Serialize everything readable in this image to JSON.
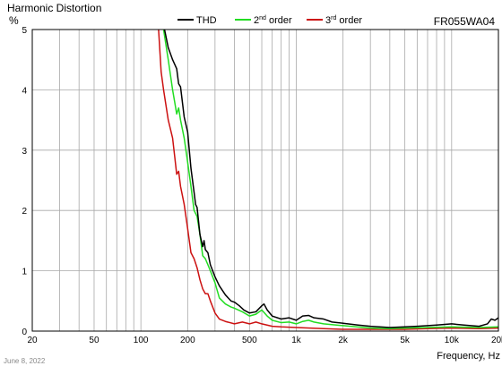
{
  "chart_data": {
    "type": "line",
    "title": "Harmonic Distortion",
    "model": "FR055WA04",
    "ylabel": "%",
    "xlabel": "Frequency, Hz",
    "date": "June 8, 2022",
    "xscale": "log",
    "xlim": [
      20,
      20000
    ],
    "ylim": [
      0,
      5
    ],
    "grid": true,
    "legend_position": "top-center",
    "x_ticks": [
      {
        "value": 20,
        "label": "20"
      },
      {
        "value": 50,
        "label": "50"
      },
      {
        "value": 100,
        "label": "100"
      },
      {
        "value": 200,
        "label": "200"
      },
      {
        "value": 500,
        "label": "500"
      },
      {
        "value": 1000,
        "label": "1k"
      },
      {
        "value": 2000,
        "label": "2k"
      },
      {
        "value": 5000,
        "label": "5k"
      },
      {
        "value": 10000,
        "label": "10k"
      },
      {
        "value": 20000,
        "label": "20k"
      }
    ],
    "y_ticks": [
      {
        "value": 0,
        "label": "0"
      },
      {
        "value": 1,
        "label": "1"
      },
      {
        "value": 2,
        "label": "2"
      },
      {
        "value": 3,
        "label": "3"
      },
      {
        "value": 4,
        "label": "4"
      },
      {
        "value": 5,
        "label": "5"
      }
    ],
    "series": [
      {
        "name": "THD",
        "color": "#000000",
        "points": [
          [
            142,
            5
          ],
          [
            150,
            4.7
          ],
          [
            160,
            4.5
          ],
          [
            170,
            4.35
          ],
          [
            175,
            4.1
          ],
          [
            180,
            4.05
          ],
          [
            190,
            3.55
          ],
          [
            200,
            3.3
          ],
          [
            210,
            2.7
          ],
          [
            220,
            2.3
          ],
          [
            225,
            2.1
          ],
          [
            230,
            2.05
          ],
          [
            240,
            1.6
          ],
          [
            250,
            1.4
          ],
          [
            255,
            1.5
          ],
          [
            260,
            1.35
          ],
          [
            270,
            1.3
          ],
          [
            280,
            1.1
          ],
          [
            300,
            0.9
          ],
          [
            320,
            0.75
          ],
          [
            350,
            0.6
          ],
          [
            380,
            0.5
          ],
          [
            400,
            0.48
          ],
          [
            430,
            0.42
          ],
          [
            460,
            0.35
          ],
          [
            500,
            0.3
          ],
          [
            550,
            0.32
          ],
          [
            600,
            0.42
          ],
          [
            620,
            0.45
          ],
          [
            650,
            0.35
          ],
          [
            700,
            0.25
          ],
          [
            800,
            0.2
          ],
          [
            900,
            0.22
          ],
          [
            1000,
            0.18
          ],
          [
            1100,
            0.25
          ],
          [
            1200,
            0.26
          ],
          [
            1300,
            0.22
          ],
          [
            1500,
            0.2
          ],
          [
            1700,
            0.15
          ],
          [
            2000,
            0.13
          ],
          [
            2500,
            0.1
          ],
          [
            3000,
            0.08
          ],
          [
            4000,
            0.06
          ],
          [
            5000,
            0.07
          ],
          [
            6000,
            0.08
          ],
          [
            8000,
            0.1
          ],
          [
            10000,
            0.12
          ],
          [
            12000,
            0.1
          ],
          [
            15000,
            0.08
          ],
          [
            17000,
            0.12
          ],
          [
            18000,
            0.2
          ],
          [
            19000,
            0.18
          ],
          [
            20000,
            0.22
          ]
        ]
      },
      {
        "name": "2nd order",
        "color": "#22dd22",
        "points": [
          [
            140,
            5
          ],
          [
            150,
            4.5
          ],
          [
            160,
            4.0
          ],
          [
            165,
            3.8
          ],
          [
            170,
            3.6
          ],
          [
            175,
            3.7
          ],
          [
            180,
            3.5
          ],
          [
            190,
            3.2
          ],
          [
            200,
            2.8
          ],
          [
            210,
            2.4
          ],
          [
            220,
            2.0
          ],
          [
            230,
            1.9
          ],
          [
            240,
            1.6
          ],
          [
            250,
            1.25
          ],
          [
            260,
            1.2
          ],
          [
            270,
            1.1
          ],
          [
            280,
            1.0
          ],
          [
            300,
            0.8
          ],
          [
            320,
            0.55
          ],
          [
            350,
            0.45
          ],
          [
            380,
            0.4
          ],
          [
            400,
            0.38
          ],
          [
            450,
            0.32
          ],
          [
            500,
            0.25
          ],
          [
            550,
            0.28
          ],
          [
            600,
            0.35
          ],
          [
            650,
            0.25
          ],
          [
            700,
            0.18
          ],
          [
            800,
            0.14
          ],
          [
            900,
            0.15
          ],
          [
            1000,
            0.12
          ],
          [
            1100,
            0.16
          ],
          [
            1200,
            0.18
          ],
          [
            1300,
            0.15
          ],
          [
            1500,
            0.12
          ],
          [
            2000,
            0.09
          ],
          [
            3000,
            0.05
          ],
          [
            4000,
            0.04
          ],
          [
            5000,
            0.05
          ],
          [
            7000,
            0.06
          ],
          [
            10000,
            0.07
          ],
          [
            15000,
            0.06
          ],
          [
            20000,
            0.07
          ]
        ]
      },
      {
        "name": "3rd order",
        "color": "#cc1111",
        "points": [
          [
            130,
            5
          ],
          [
            135,
            4.3
          ],
          [
            140,
            4.0
          ],
          [
            150,
            3.5
          ],
          [
            160,
            3.2
          ],
          [
            165,
            2.9
          ],
          [
            170,
            2.6
          ],
          [
            175,
            2.65
          ],
          [
            180,
            2.4
          ],
          [
            190,
            2.1
          ],
          [
            200,
            1.7
          ],
          [
            210,
            1.3
          ],
          [
            220,
            1.2
          ],
          [
            230,
            1.05
          ],
          [
            240,
            0.85
          ],
          [
            250,
            0.7
          ],
          [
            260,
            0.62
          ],
          [
            270,
            0.62
          ],
          [
            280,
            0.5
          ],
          [
            300,
            0.3
          ],
          [
            320,
            0.2
          ],
          [
            350,
            0.16
          ],
          [
            400,
            0.12
          ],
          [
            450,
            0.15
          ],
          [
            500,
            0.12
          ],
          [
            550,
            0.15
          ],
          [
            600,
            0.12
          ],
          [
            700,
            0.08
          ],
          [
            800,
            0.07
          ],
          [
            1000,
            0.06
          ],
          [
            1500,
            0.04
          ],
          [
            2000,
            0.03
          ],
          [
            3000,
            0.03
          ],
          [
            5000,
            0.03
          ],
          [
            7000,
            0.04
          ],
          [
            10000,
            0.05
          ],
          [
            15000,
            0.04
          ],
          [
            20000,
            0.05
          ]
        ]
      }
    ]
  }
}
